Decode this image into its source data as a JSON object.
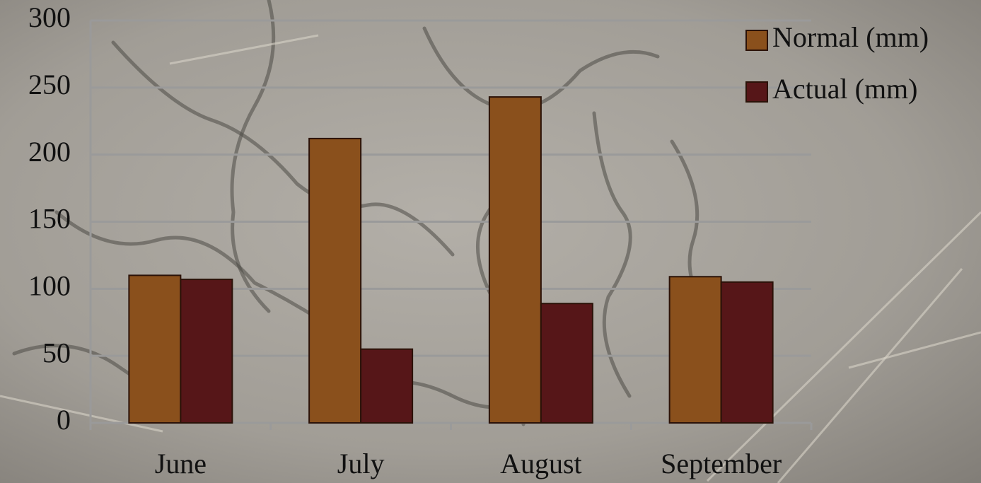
{
  "chart_data": {
    "type": "bar",
    "categories": [
      "June",
      "July",
      "August",
      "September"
    ],
    "series": [
      {
        "name": "Normal (mm)",
        "color": "#8a501c",
        "values": [
          110,
          212,
          243,
          109
        ]
      },
      {
        "name": "Actual (mm)",
        "color": "#561618",
        "values": [
          107,
          55,
          89,
          105
        ]
      }
    ],
    "ylim": [
      0,
      300
    ],
    "yticks": [
      0,
      50,
      100,
      150,
      200,
      250,
      300
    ],
    "grid": true,
    "legend": "top-right"
  }
}
